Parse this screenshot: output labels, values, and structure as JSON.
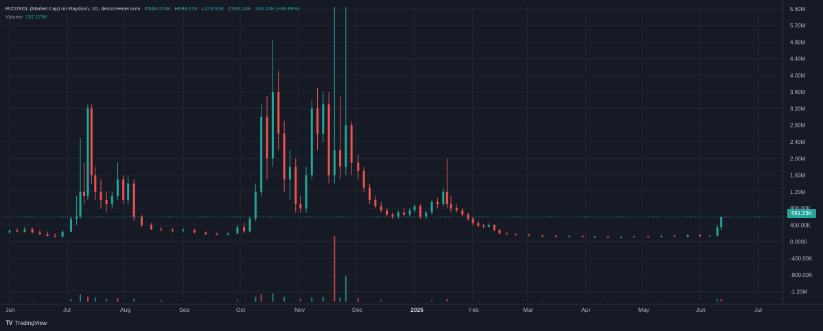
{
  "header": {
    "symbol": "RIZZ/SOL (Market Cap) on Raydium, 1D, dexscreener.com",
    "open_label": "O",
    "open": "348.010K",
    "high_label": "H",
    "high": "598.27K",
    "low_label": "L",
    "low": "276.51K",
    "close_label": "C",
    "close": "591.23K",
    "change": "243.22K (+69.89%)",
    "volume_label": "Volume",
    "volume": "157.179K"
  },
  "price_tag": "591.23K",
  "branding": {
    "logo": "TradingView"
  },
  "colors": {
    "background": "#161a25",
    "up": "#26a69a",
    "down": "#ef5350",
    "grid": "#222632",
    "text": "#b2b5be"
  },
  "chart_data": {
    "type": "candlestick",
    "price_scale": "linear",
    "grid": true,
    "ylim": [
      -1440000,
      5680000
    ],
    "y_ticks": [
      "5.60M",
      "5.20M",
      "4.80M",
      "4.40M",
      "4.00M",
      "3.60M",
      "3.20M",
      "2.80M",
      "2.40M",
      "2.00M",
      "1.60M",
      "1.20M",
      "800.00K",
      "400.00K",
      "0.0000",
      "-400.00K",
      "-800.00K",
      "-1.20M"
    ],
    "x_ticks": [
      "Jun",
      "Jul",
      "Aug",
      "Sep",
      "Oct",
      "Nov",
      "Dec",
      "2025",
      "Feb",
      "Mar",
      "Apr",
      "May",
      "Jun",
      "Jul"
    ],
    "bold_ticks": [
      "2025"
    ],
    "last_close": 591230,
    "series": [
      {
        "name": "Market Cap",
        "kind": "ohlc",
        "points": [
          [
            "Jun 1",
            0.22,
            0.3,
            0.2,
            0.26
          ],
          [
            "Jun 5",
            0.26,
            0.32,
            0.22,
            0.24
          ],
          [
            "Jun 9",
            0.24,
            0.36,
            0.22,
            0.3
          ],
          [
            "Jun 13",
            0.3,
            0.34,
            0.2,
            0.22
          ],
          [
            "Jun 17",
            0.22,
            0.28,
            0.16,
            0.18
          ],
          [
            "Jun 21",
            0.18,
            0.24,
            0.12,
            0.14
          ],
          [
            "Jun 25",
            0.14,
            0.2,
            0.1,
            0.12
          ],
          [
            "Jun 29",
            0.12,
            0.28,
            0.1,
            0.24
          ],
          [
            "Jul 3",
            0.24,
            0.6,
            0.22,
            0.55
          ],
          [
            "Jul 6",
            0.55,
            1.1,
            0.4,
            0.6
          ],
          [
            "Jul 8",
            0.6,
            2.5,
            0.55,
            1.2
          ],
          [
            "Jul 10",
            1.2,
            1.9,
            0.9,
            1.1
          ],
          [
            "Jul 12",
            1.1,
            3.3,
            1.0,
            3.2
          ],
          [
            "Jul 14",
            3.2,
            3.3,
            1.4,
            1.6
          ],
          [
            "Jul 16",
            1.6,
            1.8,
            1.0,
            1.2
          ],
          [
            "Jul 19",
            1.2,
            1.5,
            0.8,
            1.0
          ],
          [
            "Jul 22",
            1.0,
            1.2,
            0.7,
            0.9
          ],
          [
            "Jul 25",
            0.9,
            1.2,
            0.8,
            1.1
          ],
          [
            "Jul 28",
            1.1,
            1.9,
            1.0,
            1.5
          ],
          [
            "Jul 31",
            1.5,
            1.6,
            0.9,
            1.0
          ],
          [
            "Aug 3",
            1.0,
            1.6,
            0.9,
            1.4
          ],
          [
            "Aug 6",
            1.4,
            1.5,
            0.5,
            0.6
          ],
          [
            "Aug 10",
            0.6,
            0.65,
            0.35,
            0.4
          ],
          [
            "Aug 15",
            0.4,
            0.45,
            0.28,
            0.3
          ],
          [
            "Aug 20",
            0.3,
            0.36,
            0.25,
            0.28
          ],
          [
            "Aug 26",
            0.28,
            0.32,
            0.22,
            0.26
          ],
          [
            "Sep 1",
            0.26,
            0.32,
            0.22,
            0.28
          ],
          [
            "Sep 7",
            0.28,
            0.3,
            0.2,
            0.22
          ],
          [
            "Sep 13",
            0.22,
            0.24,
            0.16,
            0.18
          ],
          [
            "Sep 19",
            0.18,
            0.22,
            0.15,
            0.17
          ],
          [
            "Sep 25",
            0.17,
            0.22,
            0.15,
            0.2
          ],
          [
            "Sep 30",
            0.2,
            0.4,
            0.18,
            0.35
          ],
          [
            "Oct 3",
            0.35,
            0.45,
            0.2,
            0.25
          ],
          [
            "Oct 6",
            0.25,
            0.6,
            0.22,
            0.55
          ],
          [
            "Oct 9",
            0.55,
            1.4,
            0.5,
            1.2
          ],
          [
            "Oct 12",
            1.2,
            3.3,
            1.1,
            3.0
          ],
          [
            "Oct 15",
            3.0,
            3.5,
            1.5,
            2.0
          ],
          [
            "Oct 18",
            2.0,
            4.85,
            1.8,
            3.6
          ],
          [
            "Oct 21",
            3.6,
            4.1,
            2.2,
            2.6
          ],
          [
            "Oct 24",
            2.6,
            2.9,
            1.2,
            1.5
          ],
          [
            "Oct 27",
            1.5,
            2.2,
            1.0,
            1.8
          ],
          [
            "Oct 30",
            1.8,
            2.0,
            0.7,
            0.9
          ],
          [
            "Nov 2",
            0.9,
            1.1,
            0.7,
            0.8
          ],
          [
            "Nov 5",
            0.8,
            1.8,
            0.7,
            1.6
          ],
          [
            "Nov 8",
            1.6,
            3.4,
            1.5,
            3.2
          ],
          [
            "Nov 11",
            3.2,
            3.7,
            2.2,
            2.6
          ],
          [
            "Nov 14",
            2.6,
            3.6,
            2.4,
            3.3
          ],
          [
            "Nov 17",
            3.3,
            3.6,
            1.4,
            1.6
          ],
          [
            "Nov 20",
            1.6,
            5.65,
            1.4,
            2.2
          ],
          [
            "Nov 23",
            2.2,
            3.5,
            1.5,
            1.8
          ],
          [
            "Nov 26",
            1.8,
            5.65,
            1.6,
            2.8
          ],
          [
            "Nov 29",
            2.8,
            2.9,
            1.6,
            1.9
          ],
          [
            "Dec 2",
            1.9,
            2.1,
            1.5,
            1.7
          ],
          [
            "Dec 5",
            1.7,
            1.8,
            1.2,
            1.3
          ],
          [
            "Dec 8",
            1.3,
            1.4,
            0.9,
            1.0
          ],
          [
            "Dec 11",
            1.0,
            1.1,
            0.8,
            0.85
          ],
          [
            "Dec 14",
            0.85,
            0.95,
            0.7,
            0.75
          ],
          [
            "Dec 17",
            0.75,
            0.8,
            0.6,
            0.65
          ],
          [
            "Dec 20",
            0.65,
            0.7,
            0.55,
            0.6
          ],
          [
            "Dec 23",
            0.6,
            0.75,
            0.55,
            0.7
          ],
          [
            "Dec 26",
            0.7,
            0.8,
            0.6,
            0.65
          ],
          [
            "Dec 29",
            0.65,
            0.8,
            0.6,
            0.75
          ],
          [
            "Jan 1",
            0.75,
            0.9,
            0.7,
            0.85
          ],
          [
            "Jan 4",
            0.85,
            0.9,
            0.55,
            0.6
          ],
          [
            "Jan 7",
            0.6,
            0.75,
            0.55,
            0.7
          ],
          [
            "Jan 10",
            0.7,
            1.0,
            0.65,
            0.95
          ],
          [
            "Jan 13",
            0.95,
            1.05,
            0.8,
            0.9
          ],
          [
            "Jan 16",
            0.9,
            1.3,
            0.85,
            1.2
          ],
          [
            "Jan 18",
            1.2,
            2.0,
            0.8,
            0.9
          ],
          [
            "Jan 20",
            0.9,
            1.1,
            0.7,
            0.8
          ],
          [
            "Jan 23",
            0.8,
            0.9,
            0.7,
            0.75
          ],
          [
            "Jan 26",
            0.75,
            0.8,
            0.6,
            0.65
          ],
          [
            "Jan 29",
            0.65,
            0.7,
            0.5,
            0.55
          ],
          [
            "Feb 1",
            0.55,
            0.6,
            0.4,
            0.45
          ],
          [
            "Feb 4",
            0.45,
            0.5,
            0.35,
            0.38
          ],
          [
            "Feb 7",
            0.38,
            0.42,
            0.32,
            0.36
          ],
          [
            "Feb 10",
            0.36,
            0.45,
            0.34,
            0.4
          ],
          [
            "Feb 13",
            0.4,
            0.42,
            0.25,
            0.28
          ],
          [
            "Feb 16",
            0.28,
            0.3,
            0.18,
            0.2
          ],
          [
            "Feb 20",
            0.2,
            0.24,
            0.16,
            0.18
          ],
          [
            "Feb 25",
            0.18,
            0.2,
            0.14,
            0.16
          ],
          [
            "Mar 2",
            0.16,
            0.2,
            0.12,
            0.15
          ],
          [
            "Mar 9",
            0.15,
            0.17,
            0.11,
            0.13
          ],
          [
            "Mar 16",
            0.13,
            0.16,
            0.1,
            0.12
          ],
          [
            "Mar 23",
            0.12,
            0.15,
            0.1,
            0.13
          ],
          [
            "Mar 30",
            0.13,
            0.15,
            0.1,
            0.11
          ],
          [
            "Apr 6",
            0.11,
            0.14,
            0.09,
            0.12
          ],
          [
            "Apr 13",
            0.12,
            0.13,
            0.09,
            0.1
          ],
          [
            "Apr 20",
            0.1,
            0.13,
            0.09,
            0.11
          ],
          [
            "Apr 27",
            0.11,
            0.14,
            0.1,
            0.12
          ],
          [
            "May 4",
            0.12,
            0.14,
            0.1,
            0.11
          ],
          [
            "May 11",
            0.11,
            0.15,
            0.1,
            0.13
          ],
          [
            "May 18",
            0.13,
            0.16,
            0.11,
            0.12
          ],
          [
            "May 25",
            0.12,
            0.18,
            0.11,
            0.16
          ],
          [
            "Jun 1",
            0.16,
            0.18,
            0.12,
            0.13
          ],
          [
            "Jun 6",
            0.13,
            0.16,
            0.11,
            0.14
          ],
          [
            "Jun 10",
            0.14,
            0.4,
            0.13,
            0.348
          ],
          [
            "Jun 12",
            0.348,
            0.598,
            0.277,
            0.591
          ]
        ]
      }
    ],
    "volume": {
      "name": "Volume",
      "points": [
        [
          "Jun 1",
          0.08
        ],
        [
          "Jun 13",
          0.05
        ],
        [
          "Jul 3",
          0.3
        ],
        [
          "Jul 8",
          0.9
        ],
        [
          "Jul 12",
          0.6
        ],
        [
          "Jul 16",
          0.5
        ],
        [
          "Jul 22",
          0.3
        ],
        [
          "Jul 28",
          0.4
        ],
        [
          "Aug 6",
          0.3
        ],
        [
          "Aug 20",
          0.15
        ],
        [
          "Sep 13",
          0.08
        ],
        [
          "Sep 30",
          0.2
        ],
        [
          "Oct 9",
          0.6
        ],
        [
          "Oct 12",
          0.9
        ],
        [
          "Oct 18",
          1.0
        ],
        [
          "Oct 24",
          0.6
        ],
        [
          "Nov 2",
          0.3
        ],
        [
          "Nov 8",
          0.5
        ],
        [
          "Nov 14",
          0.6
        ],
        [
          "Nov 20",
          8.0
        ],
        [
          "Nov 23",
          0.5
        ],
        [
          "Nov 26",
          3.1
        ],
        [
          "Dec 2",
          0.4
        ],
        [
          "Dec 14",
          0.2
        ],
        [
          "Jan 10",
          0.15
        ],
        [
          "Jan 18",
          0.3
        ],
        [
          "Feb 4",
          0.1
        ],
        [
          "Mar 9",
          0.05
        ],
        [
          "Apr 13",
          0.05
        ],
        [
          "May 11",
          0.05
        ],
        [
          "Jun 10",
          0.25
        ],
        [
          "Jun 12",
          0.3
        ]
      ]
    }
  }
}
